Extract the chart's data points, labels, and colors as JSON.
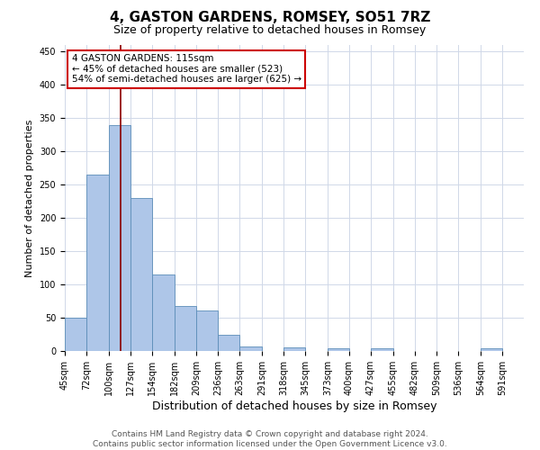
{
  "title": "4, GASTON GARDENS, ROMSEY, SO51 7RZ",
  "subtitle": "Size of property relative to detached houses in Romsey",
  "xlabel": "Distribution of detached houses by size in Romsey",
  "ylabel": "Number of detached properties",
  "bin_labels": [
    "45sqm",
    "72sqm",
    "100sqm",
    "127sqm",
    "154sqm",
    "182sqm",
    "209sqm",
    "236sqm",
    "263sqm",
    "291sqm",
    "318sqm",
    "345sqm",
    "373sqm",
    "400sqm",
    "427sqm",
    "455sqm",
    "482sqm",
    "509sqm",
    "536sqm",
    "564sqm",
    "591sqm"
  ],
  "bin_edges": [
    45,
    72,
    100,
    127,
    154,
    182,
    209,
    236,
    263,
    291,
    318,
    345,
    373,
    400,
    427,
    455,
    482,
    509,
    536,
    564,
    591,
    618
  ],
  "bar_heights": [
    50,
    265,
    340,
    230,
    115,
    67,
    61,
    25,
    7,
    0,
    6,
    0,
    4,
    0,
    4,
    0,
    0,
    0,
    0,
    4,
    0
  ],
  "bar_color": "#aec6e8",
  "bar_edge_color": "#5b8db8",
  "property_size": 115,
  "vline_color": "#8b0000",
  "annotation_line1": "4 GASTON GARDENS: 115sqm",
  "annotation_line2": "← 45% of detached houses are smaller (523)",
  "annotation_line3": "54% of semi-detached houses are larger (625) →",
  "annotation_box_color": "#ffffff",
  "annotation_box_edge_color": "#cc0000",
  "ylim": [
    0,
    460
  ],
  "yticks": [
    0,
    50,
    100,
    150,
    200,
    250,
    300,
    350,
    400,
    450
  ],
  "footnote": "Contains HM Land Registry data © Crown copyright and database right 2024.\nContains public sector information licensed under the Open Government Licence v3.0.",
  "background_color": "#ffffff",
  "grid_color": "#d0d8e8",
  "title_fontsize": 11,
  "subtitle_fontsize": 9,
  "xlabel_fontsize": 9,
  "ylabel_fontsize": 8,
  "tick_fontsize": 7,
  "annotation_fontsize": 7.5,
  "footnote_fontsize": 6.5
}
